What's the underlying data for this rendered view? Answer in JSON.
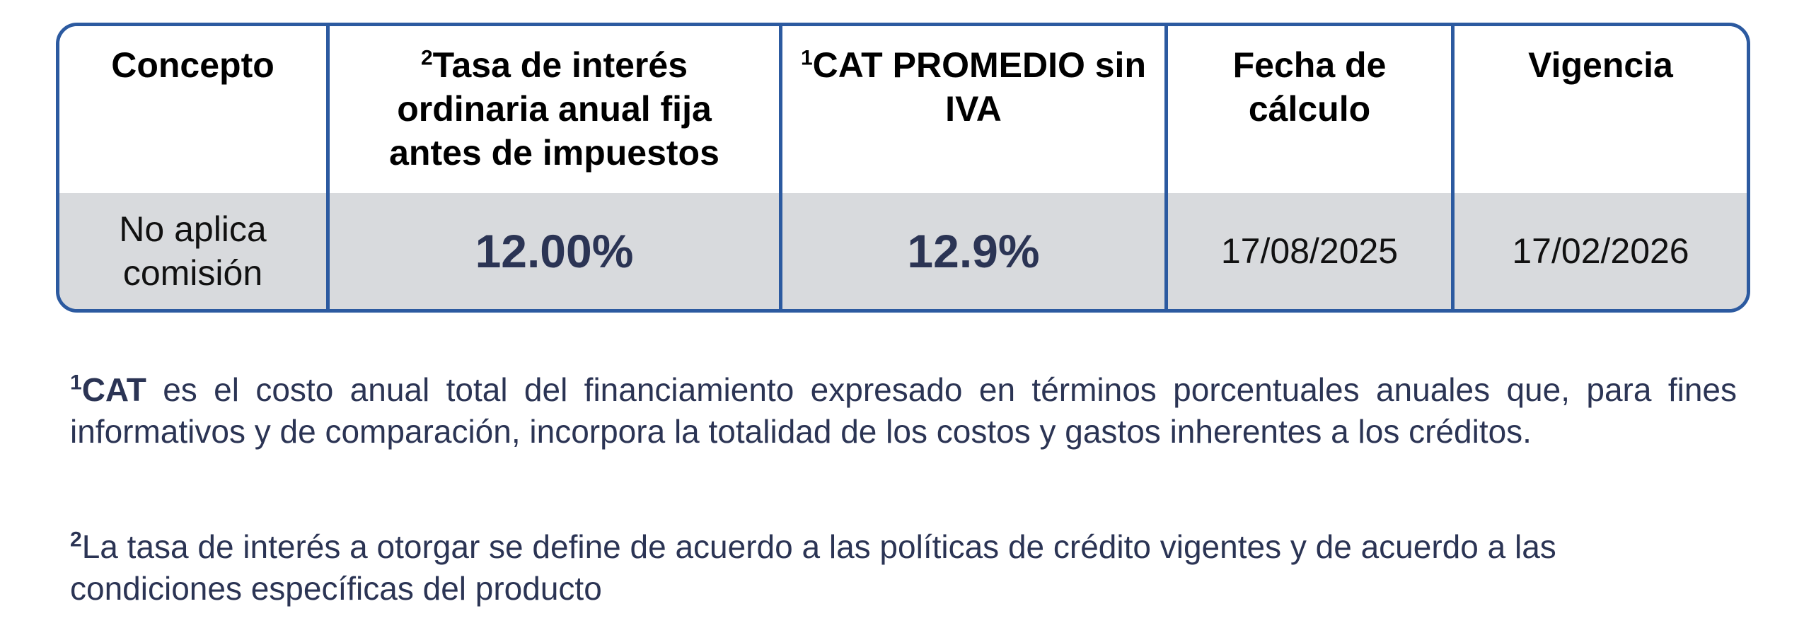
{
  "table": {
    "headers": [
      {
        "sup": "",
        "label": "Concepto"
      },
      {
        "sup": "2",
        "label": "Tasa de interés ordinaria anual fija antes de impuestos"
      },
      {
        "sup": "1",
        "label": "CAT PROMEDIO sin IVA"
      },
      {
        "sup": "",
        "label": "Fecha de cálculo"
      },
      {
        "sup": "",
        "label": "Vigencia"
      }
    ],
    "row": {
      "concepto": "No aplica comisión",
      "tasa": "12.00%",
      "cat": "12.9%",
      "fecha_calculo": "17/08/2025",
      "vigencia": "17/02/2026"
    }
  },
  "notes": {
    "note1": {
      "sup": "1",
      "term": "CAT",
      "text": " es el costo anual total del financiamiento expresado en términos porcentuales anuales que, para fines informativos y de comparación, incorpora la totalidad de los costos y gastos inherentes a los créditos."
    },
    "note2": {
      "sup": "2",
      "text": "La tasa de interés a otorgar se define de acuerdo a las políticas de crédito vigentes y de acuerdo a las condiciones específicas del producto"
    }
  },
  "colors": {
    "border": "#2c5aa0",
    "row_background": "#d8dadd",
    "text_navy": "#2b3454"
  }
}
